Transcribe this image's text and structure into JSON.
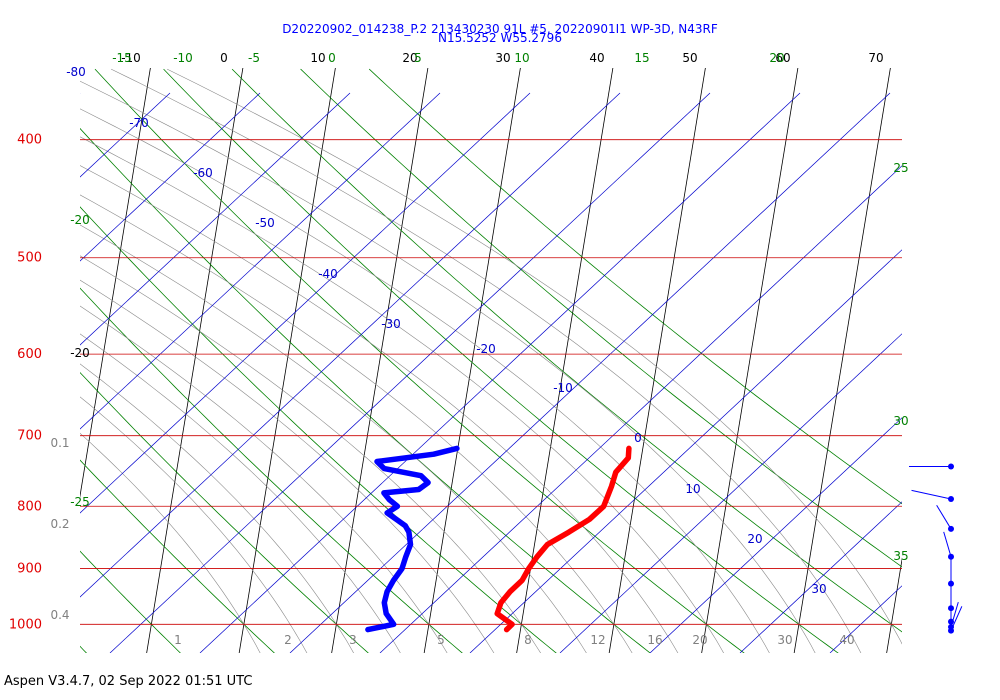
{
  "header": {
    "title_line1": "D20220902_014238_P.2 213430230 91L #5, 20220901I1 WP-3D, N43RF",
    "title_line2": "N15.5252 W55.2796"
  },
  "footer": {
    "text": "Aspen V3.4.7, 02 Sep 2022  01:51 UTC"
  },
  "chart_data": {
    "type": "line",
    "title": "D20220902_014238_P.2 213430230 91L #5, 20220901I1 WP-3D, N43RF",
    "subtitle": "N15.5252 W55.2796",
    "pressure_levels": [
      "400",
      "500",
      "600",
      "700",
      "800",
      "900",
      "1000"
    ],
    "mixing_ratio_labels": [
      "0.1",
      "0.2",
      "0.4",
      "1",
      "2",
      "3",
      "5",
      "8",
      "12",
      "16",
      "20",
      "30",
      "40"
    ],
    "top_temperature_labels": [
      "-10",
      "0",
      "10",
      "20",
      "30",
      "40",
      "50",
      "60",
      "70"
    ],
    "top_theta_labels": [
      "-15",
      "-10",
      "-5",
      "0",
      "5",
      "10",
      "15",
      "20"
    ],
    "left_temperature_labels": [
      "-20"
    ],
    "moist_adiabat_labels": [
      "-20",
      "-25",
      "25",
      "30",
      "35"
    ],
    "theta_e_labels": [
      "-80",
      "-70",
      "-60",
      "-50",
      "-40",
      "-30",
      "-20",
      "-10",
      "0",
      "10",
      "20",
      "30"
    ],
    "series": [
      {
        "name": "Temperature",
        "color": "#ff0000",
        "pressure": [
          717,
          730,
          750,
          770,
          800,
          820,
          840,
          860,
          880,
          900,
          920,
          940,
          960,
          980,
          1000,
          1010
        ],
        "values": [
          8.5,
          8.6,
          7.5,
          7.3,
          6.8,
          5.5,
          3.5,
          1.4,
          0.5,
          -0.2,
          -0.7,
          -1.8,
          -2.6,
          -2.8,
          -1.0,
          -1.5
        ]
      },
      {
        "name": "Dewpoint",
        "color": "#0000ff",
        "pressure": [
          717,
          725,
          735,
          745,
          755,
          765,
          775,
          780,
          790,
          800,
          810,
          820,
          830,
          840,
          860,
          880,
          900,
          920,
          940,
          960,
          980,
          1000,
          1010
        ],
        "values": [
          -10.1,
          -12.5,
          -18.5,
          -17.6,
          -13.5,
          -12.6,
          -13.5,
          -17.2,
          -16.5,
          -15.5,
          -16.5,
          -15.4,
          -14.3,
          -13.8,
          -13.4,
          -13.7,
          -13.9,
          -14.6,
          -15.1,
          -15.2,
          -14.8,
          -13.8,
          -16.5
        ]
      }
    ],
    "wind_barb_levels": [
      742,
      789,
      835,
      880,
      926,
      970,
      995,
      1005,
      1012
    ],
    "axis_ranges": {
      "pressure": [
        350,
        1050
      ],
      "temperature_at_surface": [
        -37,
        44
      ]
    },
    "scale": "log-pressure skew-T",
    "grid": true
  }
}
